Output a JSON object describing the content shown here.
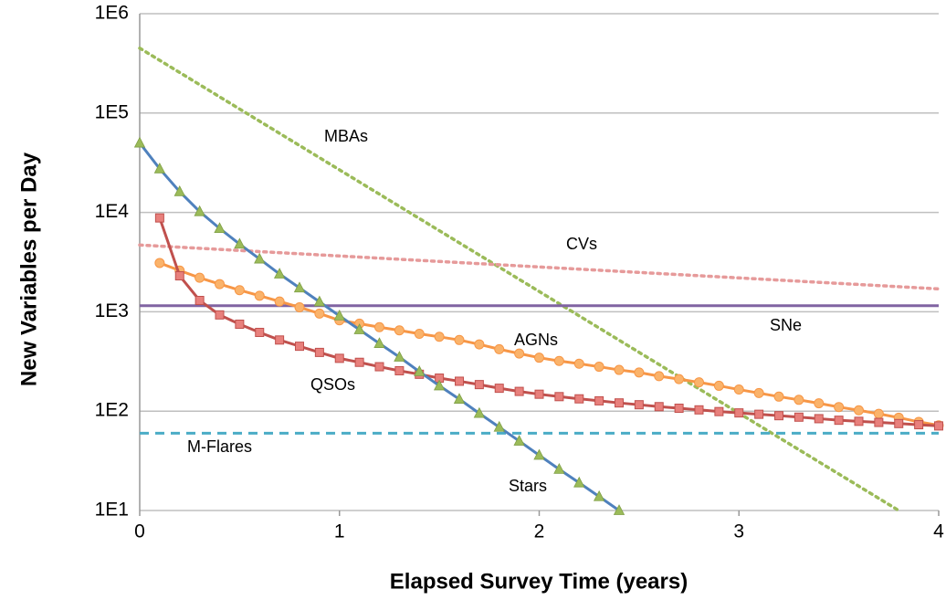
{
  "chart_data": {
    "type": "line",
    "xlabel": "Elapsed Survey Time (years)",
    "ylabel": "New Variables per Day",
    "log_y": true,
    "grid": true,
    "xlim": [
      0,
      4
    ],
    "xticks": [
      0,
      1,
      2,
      3,
      4
    ],
    "ylim": [
      10,
      1000000
    ],
    "yticks": [
      {
        "value": 10,
        "label": "1E1"
      },
      {
        "value": 100,
        "label": "1E2"
      },
      {
        "value": 1000,
        "label": "1E3"
      },
      {
        "value": 10000,
        "label": "1E4"
      },
      {
        "value": 100000,
        "label": "1E5"
      },
      {
        "value": 1000000,
        "label": "1E6"
      }
    ],
    "series": [
      {
        "name": "MBAs",
        "color": "#9bbb59",
        "dash": "dotted",
        "x": [
          0,
          3.8
        ],
        "values": [
          450000,
          10
        ]
      },
      {
        "name": "CVs",
        "color": "#e69a9a",
        "dash": "dotted",
        "x": [
          0,
          4
        ],
        "values": [
          4700,
          1700
        ]
      },
      {
        "name": "SNe",
        "color": "#8064a2",
        "dash": "solid",
        "x": [
          0,
          4
        ],
        "values": [
          1150,
          1150
        ]
      },
      {
        "name": "AGNs",
        "color": "#f79646",
        "dash": "solid",
        "marker": "circle",
        "marker_color": "#fab36b",
        "x": [
          0.1,
          0.2,
          0.3,
          0.4,
          0.5,
          0.6,
          0.7,
          0.8,
          0.9,
          1.0,
          1.1,
          1.2,
          1.3,
          1.4,
          1.5,
          1.6,
          1.7,
          1.8,
          1.9,
          2.0,
          2.1,
          2.2,
          2.3,
          2.4,
          2.5,
          2.6,
          2.7,
          2.8,
          2.9,
          3.0,
          3.1,
          3.2,
          3.3,
          3.4,
          3.5,
          3.6,
          3.7,
          3.8,
          3.9,
          4.0
        ],
        "values": [
          3100,
          2600,
          2200,
          1900,
          1650,
          1450,
          1270,
          1110,
          960,
          820,
          760,
          700,
          650,
          600,
          560,
          520,
          470,
          420,
          380,
          345,
          320,
          300,
          280,
          260,
          245,
          225,
          210,
          195,
          180,
          165,
          152,
          140,
          130,
          120,
          110,
          102,
          94,
          86,
          78,
          72
        ]
      },
      {
        "name": "QSOs",
        "color": "#c0504d",
        "dash": "solid",
        "marker": "square",
        "marker_color": "#e8807c",
        "x": [
          0.1,
          0.2,
          0.3,
          0.4,
          0.5,
          0.6,
          0.7,
          0.8,
          0.9,
          1.0,
          1.1,
          1.2,
          1.3,
          1.4,
          1.5,
          1.6,
          1.7,
          1.8,
          1.9,
          2.0,
          2.1,
          2.2,
          2.3,
          2.4,
          2.5,
          2.6,
          2.7,
          2.8,
          2.9,
          3.0,
          3.1,
          3.2,
          3.3,
          3.4,
          3.5,
          3.6,
          3.7,
          3.8,
          3.9,
          4.0
        ],
        "values": [
          8800,
          2300,
          1300,
          930,
          750,
          620,
          520,
          450,
          390,
          340,
          310,
          280,
          255,
          235,
          215,
          200,
          185,
          170,
          158,
          148,
          140,
          133,
          127,
          121,
          116,
          111,
          107,
          103,
          99,
          96,
          93,
          90,
          87,
          84,
          81,
          79,
          77,
          75,
          73,
          71
        ]
      },
      {
        "name": "M-Flares",
        "color": "#4bacc6",
        "dash": "dashed",
        "x": [
          0,
          4
        ],
        "values": [
          60,
          60
        ]
      },
      {
        "name": "Stars",
        "color": "#4f81bd",
        "dash": "solid",
        "marker": "triangle",
        "marker_color": "#9bbb59",
        "x": [
          0,
          0.1,
          0.2,
          0.3,
          0.4,
          0.5,
          0.6,
          0.7,
          0.8,
          0.9,
          1.0,
          1.1,
          1.2,
          1.3,
          1.4,
          1.5,
          1.6,
          1.7,
          1.8,
          1.9,
          2.0,
          2.1,
          2.2,
          2.3,
          2.4
        ],
        "values": [
          50000,
          27500,
          16200,
          10200,
          6900,
          4800,
          3400,
          2400,
          1740,
          1260,
          910,
          660,
          480,
          350,
          250,
          180,
          132,
          95,
          69,
          50,
          36,
          26,
          19,
          13.8,
          10
        ]
      }
    ]
  }
}
